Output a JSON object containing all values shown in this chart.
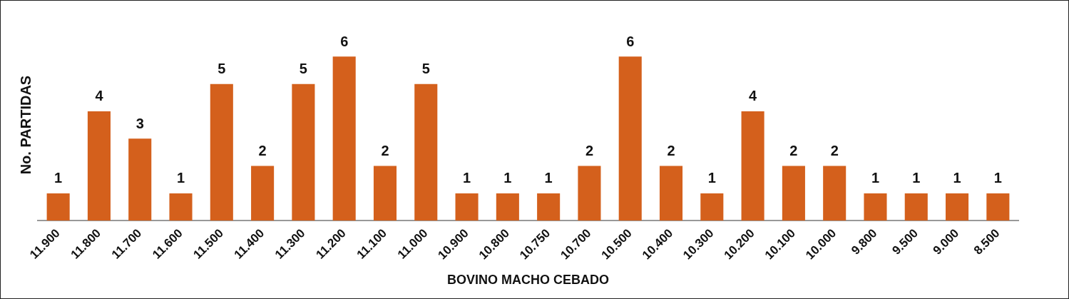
{
  "chart_data": {
    "type": "bar",
    "xlabel": "BOVINO MACHO CEBADO",
    "ylabel": "No. PARTIDAS",
    "categories": [
      "11.900",
      "11.800",
      "11.700",
      "11.600",
      "11.500",
      "11.400",
      "11.300",
      "11.200",
      "11.100",
      "11.000",
      "10.900",
      "10.800",
      "10.750",
      "10.700",
      "10.500",
      "10.400",
      "10.300",
      "10.200",
      "10.100",
      "10.000",
      "9.800",
      "9.500",
      "9.000",
      "8.500"
    ],
    "values": [
      1,
      4,
      3,
      1,
      5,
      2,
      5,
      6,
      2,
      5,
      1,
      1,
      1,
      2,
      6,
      2,
      1,
      4,
      2,
      2,
      1,
      1,
      1,
      1
    ],
    "color": "#d4601c",
    "data_labels": true,
    "grid": false,
    "legend": false,
    "tick_labels": "x"
  }
}
